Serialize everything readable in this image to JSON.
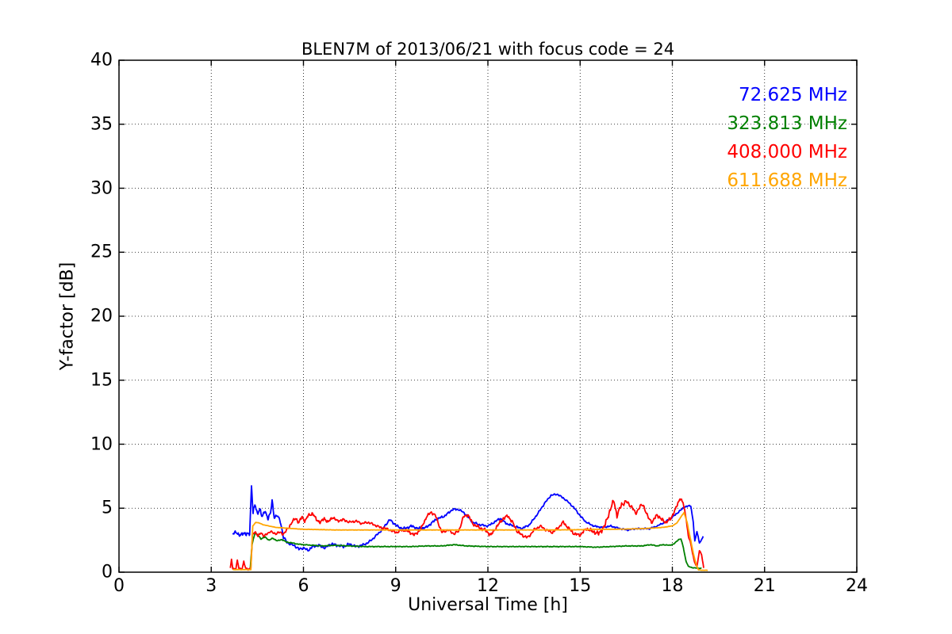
{
  "chart_data": {
    "type": "line",
    "title": "BLEN7M of 2013/06/21 with focus code = 24",
    "xlabel": "Universal Time [h]",
    "ylabel": "Y-factor [dB]",
    "xlim": [
      0,
      24
    ],
    "ylim": [
      0,
      40
    ],
    "xticks": [
      0,
      3,
      6,
      9,
      12,
      15,
      18,
      21,
      24
    ],
    "yticks": [
      0,
      5,
      10,
      15,
      20,
      25,
      30,
      35,
      40
    ],
    "grid": "dotted black, on all major ticks",
    "legend_position": "upper right, colored text labels only (no box, no line samples)",
    "frame_color": "#000000",
    "series": [
      {
        "name": "72.625 MHz",
        "color": "#0000ff",
        "keypoints": [
          [
            3.7,
            3.0
          ],
          [
            3.8,
            3.1
          ],
          [
            3.95,
            2.9
          ],
          [
            4.1,
            3.05
          ],
          [
            4.25,
            2.95
          ],
          [
            4.31,
            6.8
          ],
          [
            4.36,
            4.7
          ],
          [
            4.42,
            5.3
          ],
          [
            4.5,
            4.5
          ],
          [
            4.58,
            5.0
          ],
          [
            4.66,
            4.3
          ],
          [
            4.75,
            4.8
          ],
          [
            4.85,
            4.2
          ],
          [
            4.93,
            4.6
          ],
          [
            4.98,
            5.6
          ],
          [
            5.05,
            4.3
          ],
          [
            5.15,
            4.4
          ],
          [
            5.25,
            4.0
          ],
          [
            5.35,
            2.7
          ],
          [
            5.45,
            2.4
          ],
          [
            5.55,
            2.2
          ],
          [
            5.7,
            2.1
          ],
          [
            5.85,
            1.8
          ],
          [
            6.0,
            1.9
          ],
          [
            6.15,
            1.7
          ],
          [
            6.3,
            2.0
          ],
          [
            6.5,
            2.1
          ],
          [
            6.7,
            1.9
          ],
          [
            6.9,
            2.2
          ],
          [
            7.1,
            2.1
          ],
          [
            7.3,
            2.0
          ],
          [
            7.5,
            2.2
          ],
          [
            7.7,
            2.0
          ],
          [
            7.9,
            2.1
          ],
          [
            8.1,
            2.3
          ],
          [
            8.3,
            2.7
          ],
          [
            8.55,
            3.3
          ],
          [
            8.8,
            4.1
          ],
          [
            8.95,
            3.8
          ],
          [
            9.1,
            3.5
          ],
          [
            9.3,
            3.4
          ],
          [
            9.5,
            3.6
          ],
          [
            9.75,
            3.4
          ],
          [
            10.0,
            3.5
          ],
          [
            10.3,
            4.1
          ],
          [
            10.6,
            4.4
          ],
          [
            10.85,
            4.9
          ],
          [
            11.05,
            4.9
          ],
          [
            11.25,
            4.6
          ],
          [
            11.5,
            3.9
          ],
          [
            11.75,
            3.7
          ],
          [
            12.0,
            3.6
          ],
          [
            12.2,
            3.9
          ],
          [
            12.4,
            4.2
          ],
          [
            12.6,
            3.8
          ],
          [
            12.85,
            3.6
          ],
          [
            13.1,
            3.4
          ],
          [
            13.35,
            3.7
          ],
          [
            13.6,
            4.5
          ],
          [
            13.85,
            5.4
          ],
          [
            14.05,
            6.0
          ],
          [
            14.25,
            6.1
          ],
          [
            14.45,
            5.8
          ],
          [
            14.65,
            5.4
          ],
          [
            14.85,
            4.9
          ],
          [
            15.0,
            4.4
          ],
          [
            15.2,
            3.9
          ],
          [
            15.45,
            3.6
          ],
          [
            15.7,
            3.5
          ],
          [
            16.0,
            3.6
          ],
          [
            16.3,
            3.4
          ],
          [
            16.55,
            3.3
          ],
          [
            16.8,
            3.4
          ],
          [
            17.0,
            3.4
          ],
          [
            17.25,
            3.4
          ],
          [
            17.5,
            3.6
          ],
          [
            17.75,
            3.9
          ],
          [
            18.0,
            4.3
          ],
          [
            18.2,
            4.7
          ],
          [
            18.4,
            5.1
          ],
          [
            18.6,
            5.2
          ],
          [
            18.68,
            3.9
          ],
          [
            18.73,
            2.4
          ],
          [
            18.8,
            3.2
          ],
          [
            18.88,
            2.3
          ],
          [
            18.95,
            2.5
          ],
          [
            19.0,
            2.8
          ]
        ],
        "noise_amp": [
          [
            3.7,
            0.15
          ],
          [
            4.3,
            0.22
          ],
          [
            5.3,
            0.18
          ],
          [
            6.0,
            0.15
          ],
          [
            8.2,
            0.12
          ],
          [
            9.0,
            0.14
          ],
          [
            11.0,
            0.12
          ],
          [
            13.5,
            0.1
          ],
          [
            14.5,
            0.1
          ],
          [
            15.5,
            0.08
          ],
          [
            17.5,
            0.08
          ],
          [
            18.5,
            0.08
          ],
          [
            19.0,
            0.05
          ]
        ]
      },
      {
        "name": "323.813 MHz",
        "color": "#008000",
        "keypoints": [
          [
            4.27,
            0.3
          ],
          [
            4.33,
            2.2
          ],
          [
            4.42,
            3.05
          ],
          [
            4.52,
            2.9
          ],
          [
            4.62,
            2.6
          ],
          [
            4.75,
            2.75
          ],
          [
            4.88,
            2.5
          ],
          [
            5.0,
            2.65
          ],
          [
            5.15,
            2.45
          ],
          [
            5.3,
            2.55
          ],
          [
            5.45,
            2.35
          ],
          [
            5.6,
            2.3
          ],
          [
            5.8,
            2.2
          ],
          [
            6.0,
            2.15
          ],
          [
            6.3,
            2.1
          ],
          [
            6.6,
            2.05
          ],
          [
            7.0,
            2.1
          ],
          [
            7.5,
            2.05
          ],
          [
            8.0,
            2.0
          ],
          [
            8.5,
            2.0
          ],
          [
            9.0,
            2.0
          ],
          [
            9.5,
            2.0
          ],
          [
            10.0,
            2.05
          ],
          [
            10.5,
            2.05
          ],
          [
            10.9,
            2.15
          ],
          [
            11.3,
            2.05
          ],
          [
            12.0,
            2.0
          ],
          [
            12.5,
            2.0
          ],
          [
            13.0,
            2.0
          ],
          [
            13.5,
            2.0
          ],
          [
            14.0,
            2.0
          ],
          [
            14.5,
            2.0
          ],
          [
            15.0,
            2.0
          ],
          [
            15.5,
            1.95
          ],
          [
            16.0,
            2.0
          ],
          [
            16.5,
            2.05
          ],
          [
            17.0,
            2.05
          ],
          [
            17.3,
            2.15
          ],
          [
            17.5,
            2.05
          ],
          [
            17.7,
            2.15
          ],
          [
            17.9,
            2.1
          ],
          [
            18.05,
            2.2
          ],
          [
            18.2,
            2.55
          ],
          [
            18.28,
            2.6
          ],
          [
            18.36,
            1.9
          ],
          [
            18.44,
            0.9
          ],
          [
            18.52,
            0.45
          ],
          [
            18.65,
            0.35
          ],
          [
            18.8,
            0.32
          ],
          [
            18.95,
            0.3
          ]
        ],
        "noise_amp": [
          [
            4.3,
            0.05
          ],
          [
            6.0,
            0.04
          ],
          [
            18.3,
            0.04
          ],
          [
            19.0,
            0.02
          ]
        ]
      },
      {
        "name": "408.000 MHz",
        "color": "#ff0000",
        "keypoints": [
          [
            3.62,
            0.3
          ],
          [
            3.66,
            1.0
          ],
          [
            3.7,
            0.3
          ],
          [
            3.8,
            0.25
          ],
          [
            3.85,
            0.9
          ],
          [
            3.9,
            0.3
          ],
          [
            4.0,
            0.25
          ],
          [
            4.06,
            0.8
          ],
          [
            4.12,
            0.3
          ],
          [
            4.22,
            0.25
          ],
          [
            4.29,
            0.3
          ],
          [
            4.34,
            2.9
          ],
          [
            4.42,
            3.2
          ],
          [
            4.52,
            2.8
          ],
          [
            4.62,
            3.1
          ],
          [
            4.72,
            2.8
          ],
          [
            4.82,
            3.0
          ],
          [
            4.92,
            3.2
          ],
          [
            5.05,
            3.0
          ],
          [
            5.2,
            3.1
          ],
          [
            5.35,
            3.0
          ],
          [
            5.5,
            3.4
          ],
          [
            5.62,
            3.9
          ],
          [
            5.75,
            4.2
          ],
          [
            5.85,
            3.9
          ],
          [
            5.95,
            4.3
          ],
          [
            6.05,
            4.0
          ],
          [
            6.15,
            4.4
          ],
          [
            6.3,
            4.6
          ],
          [
            6.42,
            4.1
          ],
          [
            6.55,
            3.9
          ],
          [
            6.68,
            4.2
          ],
          [
            6.8,
            3.9
          ],
          [
            6.95,
            4.3
          ],
          [
            7.1,
            4.0
          ],
          [
            7.3,
            4.1
          ],
          [
            7.5,
            3.9
          ],
          [
            7.7,
            4.0
          ],
          [
            7.9,
            3.8
          ],
          [
            8.1,
            3.9
          ],
          [
            8.3,
            3.7
          ],
          [
            8.5,
            3.5
          ],
          [
            8.7,
            3.4
          ],
          [
            8.9,
            3.2
          ],
          [
            9.05,
            3.1
          ],
          [
            9.2,
            3.3
          ],
          [
            9.4,
            3.2
          ],
          [
            9.6,
            2.9
          ],
          [
            9.8,
            3.3
          ],
          [
            10.0,
            4.3
          ],
          [
            10.15,
            4.7
          ],
          [
            10.3,
            4.4
          ],
          [
            10.5,
            3.1
          ],
          [
            10.7,
            3.3
          ],
          [
            10.9,
            3.0
          ],
          [
            11.05,
            3.2
          ],
          [
            11.2,
            4.3
          ],
          [
            11.35,
            4.5
          ],
          [
            11.5,
            3.8
          ],
          [
            11.7,
            3.5
          ],
          [
            11.9,
            3.3
          ],
          [
            12.1,
            2.9
          ],
          [
            12.3,
            3.6
          ],
          [
            12.5,
            4.2
          ],
          [
            12.65,
            4.4
          ],
          [
            12.8,
            3.9
          ],
          [
            12.95,
            3.2
          ],
          [
            13.1,
            2.9
          ],
          [
            13.3,
            2.7
          ],
          [
            13.5,
            3.3
          ],
          [
            13.7,
            3.6
          ],
          [
            13.9,
            3.3
          ],
          [
            14.1,
            3.1
          ],
          [
            14.3,
            3.5
          ],
          [
            14.45,
            3.9
          ],
          [
            14.6,
            3.5
          ],
          [
            14.8,
            3.0
          ],
          [
            15.0,
            2.9
          ],
          [
            15.2,
            3.4
          ],
          [
            15.4,
            3.2
          ],
          [
            15.6,
            3.0
          ],
          [
            15.8,
            3.6
          ],
          [
            15.95,
            4.7
          ],
          [
            16.1,
            5.6
          ],
          [
            16.2,
            4.4
          ],
          [
            16.35,
            5.3
          ],
          [
            16.5,
            5.5
          ],
          [
            16.65,
            5.2
          ],
          [
            16.8,
            4.6
          ],
          [
            16.95,
            5.1
          ],
          [
            17.05,
            5.3
          ],
          [
            17.2,
            4.3
          ],
          [
            17.35,
            3.9
          ],
          [
            17.5,
            4.5
          ],
          [
            17.65,
            4.1
          ],
          [
            17.8,
            3.9
          ],
          [
            17.95,
            4.2
          ],
          [
            18.1,
            4.9
          ],
          [
            18.25,
            5.8
          ],
          [
            18.35,
            5.4
          ],
          [
            18.45,
            4.2
          ],
          [
            18.52,
            2.8
          ],
          [
            18.58,
            2.4
          ],
          [
            18.65,
            1.6
          ],
          [
            18.72,
            0.8
          ],
          [
            18.8,
            0.4
          ],
          [
            18.88,
            1.7
          ],
          [
            18.95,
            1.4
          ],
          [
            19.02,
            0.3
          ]
        ],
        "noise_amp": [
          [
            3.6,
            0.04
          ],
          [
            4.3,
            0.12
          ],
          [
            5.5,
            0.18
          ],
          [
            7.0,
            0.15
          ],
          [
            9.0,
            0.12
          ],
          [
            10.0,
            0.15
          ],
          [
            12.0,
            0.18
          ],
          [
            15.0,
            0.15
          ],
          [
            16.0,
            0.3
          ],
          [
            17.0,
            0.22
          ],
          [
            18.3,
            0.15
          ],
          [
            18.6,
            0.08
          ],
          [
            19.0,
            0.05
          ]
        ]
      },
      {
        "name": "611.688 MHz",
        "color": "#ffa500",
        "keypoints": [
          [
            3.7,
            0.2
          ],
          [
            4.0,
            0.2
          ],
          [
            4.29,
            0.2
          ],
          [
            4.35,
            3.6
          ],
          [
            4.45,
            3.9
          ],
          [
            4.55,
            3.85
          ],
          [
            4.7,
            3.7
          ],
          [
            4.9,
            3.6
          ],
          [
            5.1,
            3.5
          ],
          [
            5.4,
            3.45
          ],
          [
            5.7,
            3.4
          ],
          [
            6.0,
            3.35
          ],
          [
            6.5,
            3.33
          ],
          [
            7.0,
            3.3
          ],
          [
            8.0,
            3.3
          ],
          [
            9.0,
            3.3
          ],
          [
            10.0,
            3.3
          ],
          [
            11.0,
            3.3
          ],
          [
            12.0,
            3.3
          ],
          [
            13.0,
            3.3
          ],
          [
            14.0,
            3.3
          ],
          [
            15.0,
            3.32
          ],
          [
            15.5,
            3.35
          ],
          [
            16.0,
            3.35
          ],
          [
            16.5,
            3.37
          ],
          [
            17.0,
            3.4
          ],
          [
            17.4,
            3.45
          ],
          [
            17.7,
            3.5
          ],
          [
            18.0,
            3.62
          ],
          [
            18.15,
            3.85
          ],
          [
            18.3,
            4.4
          ],
          [
            18.38,
            4.65
          ],
          [
            18.48,
            3.9
          ],
          [
            18.58,
            2.7
          ],
          [
            18.68,
            1.5
          ],
          [
            18.78,
            0.55
          ],
          [
            18.85,
            0.18
          ],
          [
            19.0,
            0.15
          ],
          [
            19.15,
            0.15
          ]
        ],
        "noise_amp": [
          [
            3.7,
            0.015
          ],
          [
            19.15,
            0.015
          ]
        ]
      }
    ]
  }
}
